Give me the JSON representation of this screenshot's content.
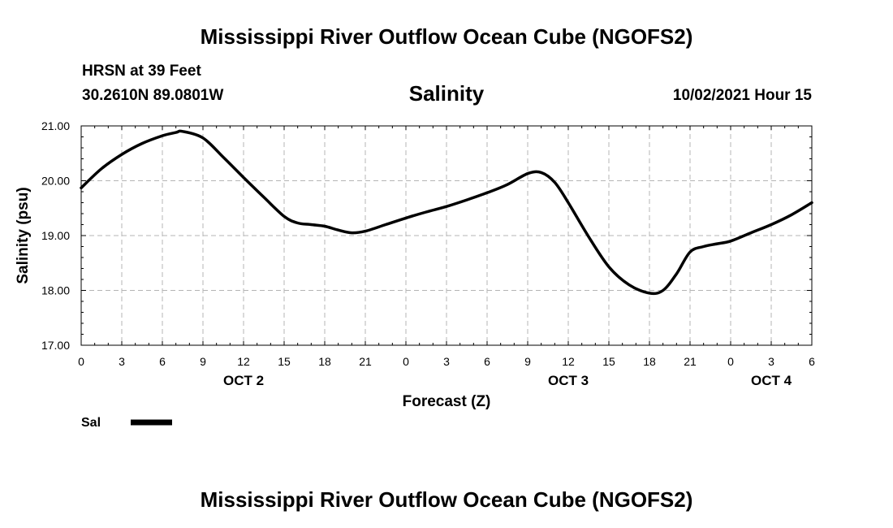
{
  "header": {
    "title": "Mississippi River Outflow Ocean Cube (NGOFS2)",
    "station": "HRSN at 39 Feet",
    "coords": "30.2610N  89.0801W",
    "variable": "Salinity",
    "datetime": "10/02/2021 Hour 15"
  },
  "footer": {
    "title": "Mississippi River Outflow Ocean Cube (NGOFS2)"
  },
  "chart_data": {
    "type": "line",
    "title": "Salinity",
    "xlabel": "Forecast (Z)",
    "ylabel": "Salinity (psu)",
    "ylim": [
      17,
      21
    ],
    "xlim": [
      0,
      54
    ],
    "y_ticks": [
      "17.00",
      "18.00",
      "19.00",
      "20.00",
      "21.00"
    ],
    "x_ticks": [
      "0",
      "3",
      "6",
      "9",
      "12",
      "15",
      "18",
      "21",
      "0",
      "3",
      "6",
      "9",
      "12",
      "15",
      "18",
      "21",
      "0",
      "3",
      "6"
    ],
    "day_labels": [
      {
        "label": "OCT 2",
        "hour": 12
      },
      {
        "label": "OCT 3",
        "hour": 36
      },
      {
        "label": "OCT 4",
        "hour": 51
      }
    ],
    "grid": true,
    "legend": {
      "position": "bottom-left",
      "entries": [
        {
          "name": "Sal",
          "color": "#000000"
        }
      ]
    },
    "series": [
      {
        "name": "Sal",
        "color": "#000000",
        "x": [
          0,
          1.5,
          3,
          4.5,
          6,
          7,
          7.5,
          9,
          10.5,
          12,
          13.5,
          15,
          16,
          17,
          18,
          19,
          20,
          21,
          22.5,
          24,
          25.5,
          27,
          28.5,
          30,
          31.5,
          33,
          34,
          35,
          36,
          37.5,
          39,
          40.5,
          42,
          43,
          44,
          45,
          46,
          47,
          48,
          49.5,
          51,
          52.5,
          54
        ],
        "y": [
          19.87,
          20.22,
          20.48,
          20.68,
          20.82,
          20.88,
          20.9,
          20.78,
          20.43,
          20.06,
          19.7,
          19.35,
          19.23,
          19.2,
          19.17,
          19.1,
          19.05,
          19.08,
          19.2,
          19.32,
          19.43,
          19.53,
          19.65,
          19.78,
          19.93,
          20.13,
          20.15,
          19.97,
          19.6,
          18.98,
          18.43,
          18.1,
          17.95,
          18.0,
          18.3,
          18.7,
          18.8,
          18.85,
          18.9,
          19.05,
          19.2,
          19.38,
          19.6
        ]
      }
    ]
  }
}
